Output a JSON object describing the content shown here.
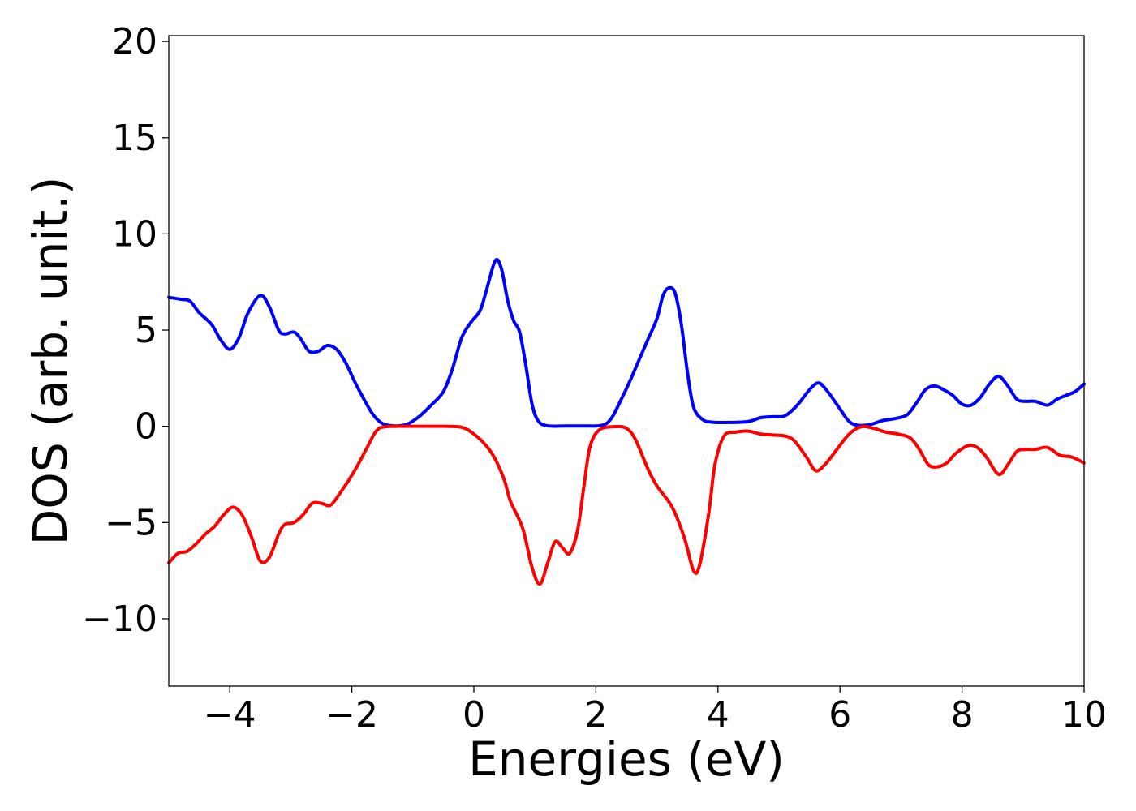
{
  "chart_data": {
    "type": "line",
    "title": "",
    "xlabel": "Energies (eV)",
    "ylabel": "DOS (arb. unit.)",
    "xlim": [
      -5,
      10
    ],
    "ylim": [
      -13.5,
      20.3
    ],
    "xticks": [
      -4,
      -2,
      0,
      2,
      4,
      6,
      8,
      10
    ],
    "xtick_labels": [
      "−4",
      "−2",
      "0",
      "2",
      "4",
      "6",
      "8",
      "10"
    ],
    "yticks": [
      -10,
      -5,
      0,
      5,
      10,
      15,
      20
    ],
    "ytick_labels": [
      "−10",
      "−5",
      "0",
      "5",
      "10",
      "15",
      "20"
    ],
    "grid": false,
    "series": [
      {
        "color": "#0000ff",
        "points": [
          [
            -5.0,
            6.7
          ],
          [
            -4.8,
            6.6
          ],
          [
            -4.65,
            6.5
          ],
          [
            -4.5,
            5.9
          ],
          [
            -4.3,
            5.3
          ],
          [
            -4.15,
            4.5
          ],
          [
            -4.0,
            4.0
          ],
          [
            -3.85,
            4.6
          ],
          [
            -3.7,
            5.9
          ],
          [
            -3.5,
            6.8
          ],
          [
            -3.35,
            6.2
          ],
          [
            -3.2,
            5.0
          ],
          [
            -3.1,
            4.8
          ],
          [
            -2.95,
            4.9
          ],
          [
            -2.85,
            4.6
          ],
          [
            -2.7,
            3.9
          ],
          [
            -2.55,
            3.9
          ],
          [
            -2.4,
            4.2
          ],
          [
            -2.25,
            4.0
          ],
          [
            -2.1,
            3.3
          ],
          [
            -1.95,
            2.3
          ],
          [
            -1.8,
            1.4
          ],
          [
            -1.65,
            0.6
          ],
          [
            -1.5,
            0.15
          ],
          [
            -1.3,
            0.02
          ],
          [
            -1.1,
            0.1
          ],
          [
            -0.9,
            0.5
          ],
          [
            -0.7,
            1.1
          ],
          [
            -0.5,
            1.8
          ],
          [
            -0.35,
            3.0
          ],
          [
            -0.2,
            4.6
          ],
          [
            -0.05,
            5.4
          ],
          [
            0.1,
            6.0
          ],
          [
            0.2,
            7.0
          ],
          [
            0.35,
            8.6
          ],
          [
            0.45,
            8.2
          ],
          [
            0.55,
            6.6
          ],
          [
            0.65,
            5.5
          ],
          [
            0.75,
            4.9
          ],
          [
            0.85,
            3.2
          ],
          [
            0.95,
            1.2
          ],
          [
            1.05,
            0.3
          ],
          [
            1.2,
            0.03
          ],
          [
            1.5,
            0.02
          ],
          [
            1.8,
            0.02
          ],
          [
            2.1,
            0.05
          ],
          [
            2.25,
            0.4
          ],
          [
            2.4,
            1.3
          ],
          [
            2.55,
            2.3
          ],
          [
            2.7,
            3.4
          ],
          [
            2.85,
            4.5
          ],
          [
            3.0,
            5.6
          ],
          [
            3.1,
            6.8
          ],
          [
            3.2,
            7.2
          ],
          [
            3.3,
            6.9
          ],
          [
            3.4,
            5.3
          ],
          [
            3.5,
            2.8
          ],
          [
            3.6,
            1.0
          ],
          [
            3.75,
            0.35
          ],
          [
            3.9,
            0.22
          ],
          [
            4.2,
            0.2
          ],
          [
            4.5,
            0.25
          ],
          [
            4.7,
            0.45
          ],
          [
            4.9,
            0.5
          ],
          [
            5.1,
            0.55
          ],
          [
            5.3,
            1.1
          ],
          [
            5.5,
            1.9
          ],
          [
            5.65,
            2.25
          ],
          [
            5.8,
            1.8
          ],
          [
            6.0,
            0.9
          ],
          [
            6.15,
            0.25
          ],
          [
            6.3,
            0.05
          ],
          [
            6.5,
            0.1
          ],
          [
            6.7,
            0.3
          ],
          [
            6.9,
            0.4
          ],
          [
            7.1,
            0.6
          ],
          [
            7.25,
            1.2
          ],
          [
            7.4,
            1.9
          ],
          [
            7.55,
            2.1
          ],
          [
            7.7,
            1.9
          ],
          [
            7.85,
            1.6
          ],
          [
            8.0,
            1.15
          ],
          [
            8.15,
            1.1
          ],
          [
            8.3,
            1.5
          ],
          [
            8.45,
            2.2
          ],
          [
            8.6,
            2.6
          ],
          [
            8.75,
            2.1
          ],
          [
            8.9,
            1.4
          ],
          [
            9.05,
            1.3
          ],
          [
            9.2,
            1.3
          ],
          [
            9.4,
            1.1
          ],
          [
            9.55,
            1.4
          ],
          [
            9.7,
            1.6
          ],
          [
            9.85,
            1.8
          ],
          [
            10.0,
            2.2
          ]
        ]
      },
      {
        "color": "#ff0000",
        "points": [
          [
            -5.0,
            -7.1
          ],
          [
            -4.85,
            -6.6
          ],
          [
            -4.7,
            -6.5
          ],
          [
            -4.55,
            -6.1
          ],
          [
            -4.4,
            -5.6
          ],
          [
            -4.25,
            -5.2
          ],
          [
            -4.1,
            -4.6
          ],
          [
            -3.95,
            -4.2
          ],
          [
            -3.8,
            -4.6
          ],
          [
            -3.65,
            -5.7
          ],
          [
            -3.5,
            -7.0
          ],
          [
            -3.35,
            -6.8
          ],
          [
            -3.2,
            -5.6
          ],
          [
            -3.1,
            -5.1
          ],
          [
            -2.95,
            -5.0
          ],
          [
            -2.8,
            -4.6
          ],
          [
            -2.65,
            -4.0
          ],
          [
            -2.5,
            -4.0
          ],
          [
            -2.35,
            -4.1
          ],
          [
            -2.2,
            -3.5
          ],
          [
            -2.05,
            -2.8
          ],
          [
            -1.9,
            -2.0
          ],
          [
            -1.75,
            -1.1
          ],
          [
            -1.6,
            -0.25
          ],
          [
            -1.45,
            -0.02
          ],
          [
            -1.0,
            0.0
          ],
          [
            -0.5,
            0.0
          ],
          [
            -0.2,
            -0.05
          ],
          [
            0.0,
            -0.4
          ],
          [
            0.2,
            -1.0
          ],
          [
            0.35,
            -1.7
          ],
          [
            0.5,
            -2.8
          ],
          [
            0.6,
            -3.9
          ],
          [
            0.8,
            -5.3
          ],
          [
            0.95,
            -7.3
          ],
          [
            1.08,
            -8.2
          ],
          [
            1.2,
            -7.2
          ],
          [
            1.33,
            -6.0
          ],
          [
            1.45,
            -6.3
          ],
          [
            1.57,
            -6.6
          ],
          [
            1.7,
            -5.4
          ],
          [
            1.8,
            -3.2
          ],
          [
            1.9,
            -1.1
          ],
          [
            2.05,
            -0.2
          ],
          [
            2.3,
            -0.02
          ],
          [
            2.5,
            -0.1
          ],
          [
            2.65,
            -0.7
          ],
          [
            2.85,
            -2.2
          ],
          [
            3.0,
            -3.1
          ],
          [
            3.25,
            -4.2
          ],
          [
            3.45,
            -5.8
          ],
          [
            3.6,
            -7.5
          ],
          [
            3.7,
            -7.2
          ],
          [
            3.85,
            -4.5
          ],
          [
            3.95,
            -2.0
          ],
          [
            4.1,
            -0.5
          ],
          [
            4.3,
            -0.3
          ],
          [
            4.5,
            -0.25
          ],
          [
            4.7,
            -0.4
          ],
          [
            4.9,
            -0.45
          ],
          [
            5.1,
            -0.5
          ],
          [
            5.25,
            -0.75
          ],
          [
            5.45,
            -1.6
          ],
          [
            5.6,
            -2.3
          ],
          [
            5.75,
            -2.0
          ],
          [
            5.95,
            -1.2
          ],
          [
            6.15,
            -0.4
          ],
          [
            6.35,
            -0.02
          ],
          [
            6.55,
            -0.1
          ],
          [
            6.75,
            -0.3
          ],
          [
            6.95,
            -0.4
          ],
          [
            7.15,
            -0.6
          ],
          [
            7.3,
            -1.2
          ],
          [
            7.45,
            -2.0
          ],
          [
            7.6,
            -2.1
          ],
          [
            7.75,
            -1.9
          ],
          [
            7.9,
            -1.4
          ],
          [
            8.1,
            -1.0
          ],
          [
            8.25,
            -1.1
          ],
          [
            8.4,
            -1.6
          ],
          [
            8.6,
            -2.5
          ],
          [
            8.75,
            -2.0
          ],
          [
            8.9,
            -1.3
          ],
          [
            9.05,
            -1.2
          ],
          [
            9.2,
            -1.2
          ],
          [
            9.4,
            -1.1
          ],
          [
            9.6,
            -1.5
          ],
          [
            9.8,
            -1.6
          ],
          [
            10.0,
            -1.9
          ]
        ]
      }
    ]
  }
}
